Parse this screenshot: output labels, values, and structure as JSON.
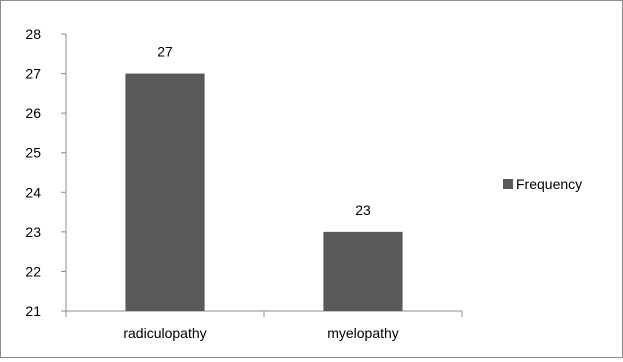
{
  "chart_data": {
    "type": "bar",
    "categories": [
      "radiculopathy",
      "myelopathy"
    ],
    "series": [
      {
        "name": "Frequency",
        "values": [
          27,
          23
        ],
        "color": "#595959"
      }
    ],
    "data_labels": [
      "27",
      "23"
    ],
    "ylim": [
      21,
      28
    ],
    "yticks": [
      21,
      22,
      23,
      24,
      25,
      26,
      27,
      28
    ],
    "title": "",
    "xlabel": "",
    "ylabel": "",
    "grid": false,
    "legend_position": "right"
  }
}
